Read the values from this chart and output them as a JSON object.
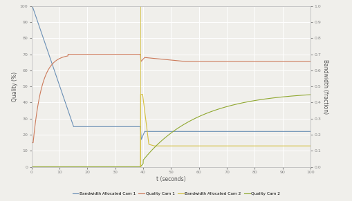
{
  "title": "",
  "xlabel": "t (seconds)",
  "ylabel_left": "Quality (%)",
  "ylabel_right": "Bandwidth (fraction)",
  "xlim": [
    0,
    100
  ],
  "ylim_left": [
    0,
    100
  ],
  "ylim_right": [
    0,
    1
  ],
  "yticks_left": [
    0,
    10,
    20,
    30,
    40,
    50,
    60,
    70,
    80,
    90,
    100
  ],
  "yticks_right": [
    0.0,
    0.1,
    0.2,
    0.3,
    0.4,
    0.5,
    0.6,
    0.7,
    0.8,
    0.9,
    1.0
  ],
  "xticks": [
    0,
    10,
    20,
    30,
    40,
    50,
    60,
    70,
    80,
    90,
    100
  ],
  "join_time": 39,
  "colors": {
    "bw_cam1": "#6A8FB5",
    "quality_cam1": "#CC7A5A",
    "bw_cam2": "#D4C040",
    "quality_cam2": "#90A830"
  },
  "legend_labels": [
    "Bandwidth Allocated Cam 1",
    "Quality Cam 1",
    "Bandwidth Allocated Cam 2",
    "Quality Cam 2"
  ],
  "background_color": "#f0efeb",
  "grid_color": "#ffffff"
}
